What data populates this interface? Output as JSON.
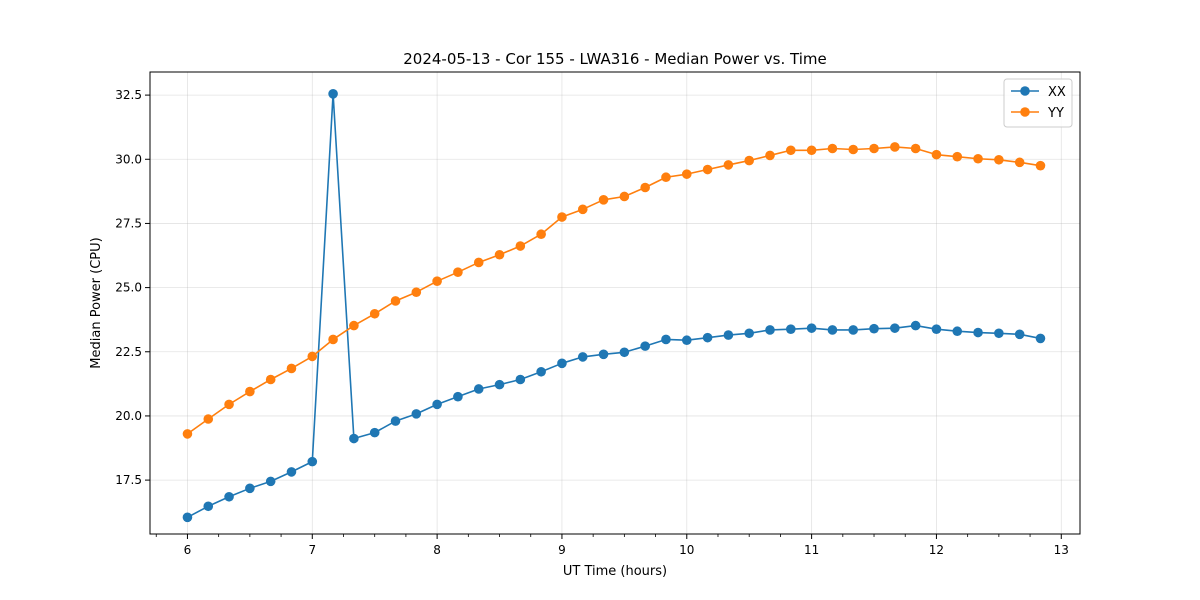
{
  "colors": {
    "xx": "#1f77b4",
    "yy": "#ff7f0e",
    "grid": "#b0b0b0",
    "axis": "#000000",
    "background": "#ffffff",
    "legend_border": "#cccccc"
  },
  "chart_data": {
    "type": "line",
    "title": "2024-05-13 - Cor 155 - LWA316 - Median Power vs. Time",
    "xlabel": "UT Time (hours)",
    "ylabel": "Median Power (CPU)",
    "xlim": [
      5.7,
      13.15
    ],
    "ylim": [
      15.4,
      33.4
    ],
    "xticks": [
      6,
      7,
      8,
      9,
      10,
      11,
      12,
      13
    ],
    "xtick_labels": [
      "6",
      "7",
      "8",
      "9",
      "10",
      "11",
      "12",
      "13"
    ],
    "yticks": [
      17.5,
      20.0,
      22.5,
      25.0,
      27.5,
      30.0,
      32.5
    ],
    "ytick_labels": [
      "17.5",
      "20.0",
      "22.5",
      "25.0",
      "27.5",
      "30.0",
      "32.5"
    ],
    "x_minor_step": 0.25,
    "grid": true,
    "legend": "top-right",
    "markers": "circle",
    "x": [
      6.0,
      6.1667,
      6.3333,
      6.5,
      6.6667,
      6.8333,
      7.0,
      7.1667,
      7.3333,
      7.5,
      7.6667,
      7.8333,
      8.0,
      8.1667,
      8.3333,
      8.5,
      8.6667,
      8.8333,
      9.0,
      9.1667,
      9.3333,
      9.5,
      9.6667,
      9.8333,
      10.0,
      10.1667,
      10.3333,
      10.5,
      10.6667,
      10.8333,
      11.0,
      11.1667,
      11.3333,
      11.5,
      11.6667,
      11.8333,
      12.0,
      12.1667,
      12.3333,
      12.5,
      12.6667,
      12.8333
    ],
    "series": [
      {
        "name": "XX",
        "color_key": "xx",
        "values": [
          16.05,
          16.48,
          16.85,
          17.18,
          17.45,
          17.82,
          18.22,
          32.55,
          19.12,
          19.35,
          19.8,
          20.08,
          20.45,
          20.75,
          21.05,
          21.22,
          21.42,
          21.72,
          22.05,
          22.3,
          22.4,
          22.48,
          22.72,
          22.98,
          22.95,
          23.05,
          23.15,
          23.22,
          23.35,
          23.38,
          23.42,
          23.35,
          23.35,
          23.4,
          23.42,
          23.52,
          23.38,
          23.3,
          23.25,
          23.22,
          23.18,
          23.02
        ]
      },
      {
        "name": "YY",
        "color_key": "yy",
        "values": [
          19.3,
          19.88,
          20.45,
          20.95,
          21.42,
          21.85,
          22.32,
          22.98,
          23.52,
          23.98,
          24.48,
          24.82,
          25.25,
          25.6,
          25.98,
          26.28,
          26.62,
          27.08,
          27.75,
          28.05,
          28.42,
          28.55,
          28.9,
          29.3,
          29.42,
          29.6,
          29.78,
          29.95,
          30.15,
          30.35,
          30.35,
          30.42,
          30.38,
          30.42,
          30.48,
          30.42,
          30.18,
          30.1,
          30.02,
          29.98,
          29.88,
          29.75
        ]
      }
    ]
  }
}
